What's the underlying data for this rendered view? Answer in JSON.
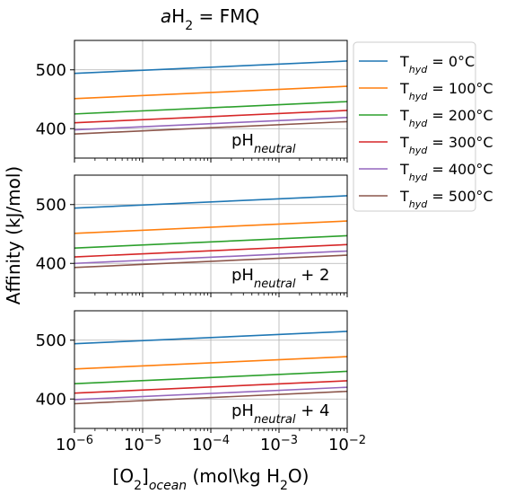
{
  "chart_data": {
    "type": "line",
    "title": {
      "italic": "a",
      "main": "H",
      "sub": "2",
      "rest": " = FMQ"
    },
    "xlabel": {
      "pre": "[O",
      "sub1": "2",
      "mid": "]",
      "sub2": "ocean",
      "post": " (mol\\kg H",
      "sub3": "2",
      "end": "O)"
    },
    "ylabel": "Affinity (kJ/mol)",
    "xscale": "log",
    "xlim": [
      1e-06,
      0.01
    ],
    "ylim": [
      350,
      550
    ],
    "yticks": [
      "400",
      "500"
    ],
    "xticks": [
      {
        "base": "10",
        "exp": "−6"
      },
      {
        "base": "10",
        "exp": "−5"
      },
      {
        "base": "10",
        "exp": "−4"
      },
      {
        "base": "10",
        "exp": "−3"
      },
      {
        "base": "10",
        "exp": "−2"
      }
    ],
    "grid": true,
    "legend": {
      "placement": "outside-upper-right",
      "entries": [
        {
          "pre": "T",
          "sub": "hyd",
          "post": " = 0°C",
          "color": "#1f77b4"
        },
        {
          "pre": "T",
          "sub": "hyd",
          "post": " = 100°C",
          "color": "#ff7f0e"
        },
        {
          "pre": "T",
          "sub": "hyd",
          "post": " = 200°C",
          "color": "#2ca02c"
        },
        {
          "pre": "T",
          "sub": "hyd",
          "post": " = 300°C",
          "color": "#d62728"
        },
        {
          "pre": "T",
          "sub": "hyd",
          "post": " = 400°C",
          "color": "#9467bd"
        },
        {
          "pre": "T",
          "sub": "hyd",
          "post": " = 500°C",
          "color": "#8c564b"
        }
      ]
    },
    "panels": [
      {
        "annotation": {
          "pre": "pH",
          "sub": "neutral",
          "post": ""
        },
        "series": [
          {
            "name": "0°C",
            "y_start": 494,
            "y_end": 515
          },
          {
            "name": "100°C",
            "y_start": 451,
            "y_end": 472
          },
          {
            "name": "200°C",
            "y_start": 425,
            "y_end": 446
          },
          {
            "name": "300°C",
            "y_start": 410,
            "y_end": 431
          },
          {
            "name": "400°C",
            "y_start": 398,
            "y_end": 419
          },
          {
            "name": "500°C",
            "y_start": 391,
            "y_end": 412
          }
        ]
      },
      {
        "annotation": {
          "pre": "pH",
          "sub": "neutral",
          "post": " + 2"
        },
        "series": [
          {
            "name": "0°C",
            "y_start": 494,
            "y_end": 515
          },
          {
            "name": "100°C",
            "y_start": 451,
            "y_end": 472
          },
          {
            "name": "200°C",
            "y_start": 426,
            "y_end": 447
          },
          {
            "name": "300°C",
            "y_start": 411,
            "y_end": 432
          },
          {
            "name": "400°C",
            "y_start": 400,
            "y_end": 421
          },
          {
            "name": "500°C",
            "y_start": 393,
            "y_end": 414
          }
        ]
      },
      {
        "annotation": {
          "pre": "pH",
          "sub": "neutral",
          "post": " + 4"
        },
        "series": [
          {
            "name": "0°C",
            "y_start": 494,
            "y_end": 515
          },
          {
            "name": "100°C",
            "y_start": 451,
            "y_end": 472
          },
          {
            "name": "200°C",
            "y_start": 426,
            "y_end": 447
          },
          {
            "name": "300°C",
            "y_start": 410,
            "y_end": 431
          },
          {
            "name": "400°C",
            "y_start": 399,
            "y_end": 420
          },
          {
            "name": "500°C",
            "y_start": 392,
            "y_end": 413
          }
        ]
      }
    ]
  }
}
